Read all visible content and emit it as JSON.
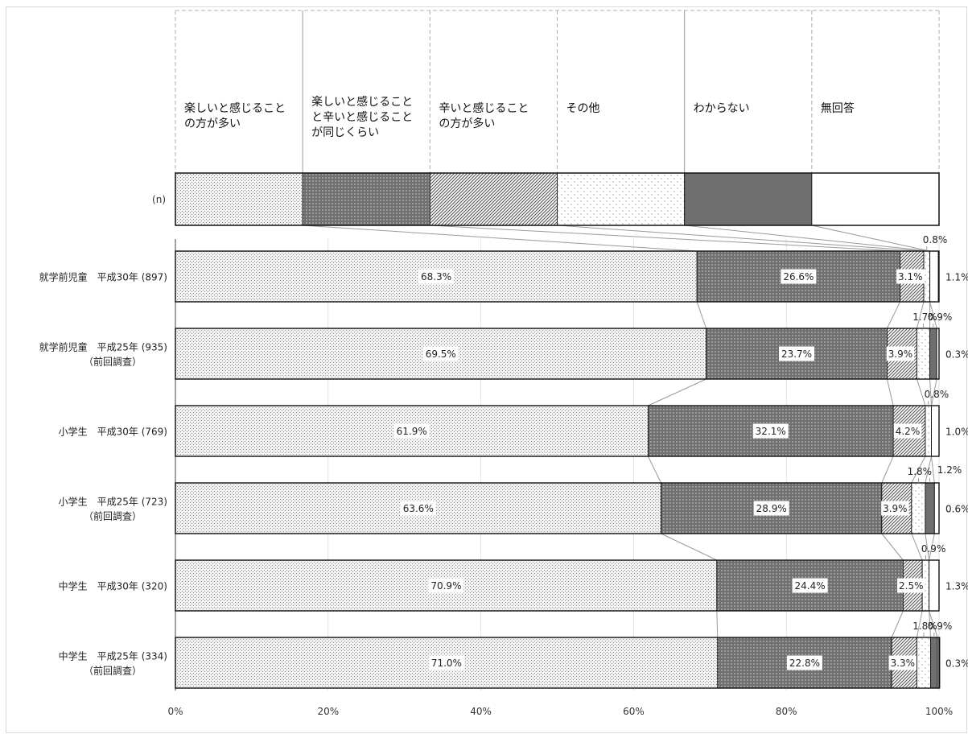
{
  "chart_data": {
    "type": "bar",
    "stacked": true,
    "orientation": "horizontal",
    "legend_placement": "top",
    "n_label": "(n)",
    "legend_labels": [
      [
        "楽しいと感じること",
        "の方が多い"
      ],
      [
        "楽しいと感じること",
        "と辛いと感じること",
        "が同じくらい"
      ],
      [
        "辛いと感じること",
        "の方が多い"
      ],
      [
        "その他"
      ],
      [
        "わからない"
      ],
      [
        "無回答"
      ]
    ],
    "series_names": [
      "楽しいと感じることの方が多い",
      "楽しいと感じることと辛いと感じることが同じくらい",
      "辛いと感じることの方が多い",
      "その他",
      "わからない",
      "無回答"
    ],
    "categories": [
      [
        "就学前児童　平成30年 (897)"
      ],
      [
        "就学前児童　平成25年 (935)",
        "（前回調査）"
      ],
      [
        "小学生　平成30年 (769)"
      ],
      [
        "小学生　平成25年 (723)",
        "（前回調査）"
      ],
      [
        "中学生　平成30年 (320)"
      ],
      [
        "中学生　平成25年 (334)",
        "（前回調査）"
      ]
    ],
    "values": [
      [
        68.3,
        26.6,
        3.1,
        0.8,
        0.0,
        1.1
      ],
      [
        69.5,
        23.7,
        3.9,
        1.7,
        0.9,
        0.3
      ],
      [
        61.9,
        32.1,
        4.2,
        0.8,
        0.0,
        1.0
      ],
      [
        63.6,
        28.9,
        3.9,
        1.8,
        1.2,
        0.6
      ],
      [
        70.9,
        24.4,
        2.5,
        0.9,
        0.0,
        1.3
      ],
      [
        71.0,
        22.8,
        3.3,
        1.8,
        0.9,
        0.3
      ]
    ],
    "value_labels": [
      [
        "68.3%",
        "26.6%",
        "3.1%",
        "0.8%",
        "",
        "1.1%"
      ],
      [
        "69.5%",
        "23.7%",
        "3.9%",
        "1.7%",
        "0.9%",
        "0.3%"
      ],
      [
        "61.9%",
        "32.1%",
        "4.2%",
        "0.8%",
        "",
        "1.0%"
      ],
      [
        "63.6%",
        "28.9%",
        "3.9%",
        "1.8%",
        "1.2%",
        "0.6%"
      ],
      [
        "70.9%",
        "24.4%",
        "2.5%",
        "0.9%",
        "",
        "1.3%"
      ],
      [
        "71.0%",
        "22.8%",
        "3.3%",
        "1.8%",
        "0.9%",
        "0.3%"
      ]
    ],
    "xlim": [
      0,
      100
    ],
    "xticks": [
      "0%",
      "20%",
      "40%",
      "60%",
      "80%",
      "100%"
    ],
    "grid": true
  }
}
